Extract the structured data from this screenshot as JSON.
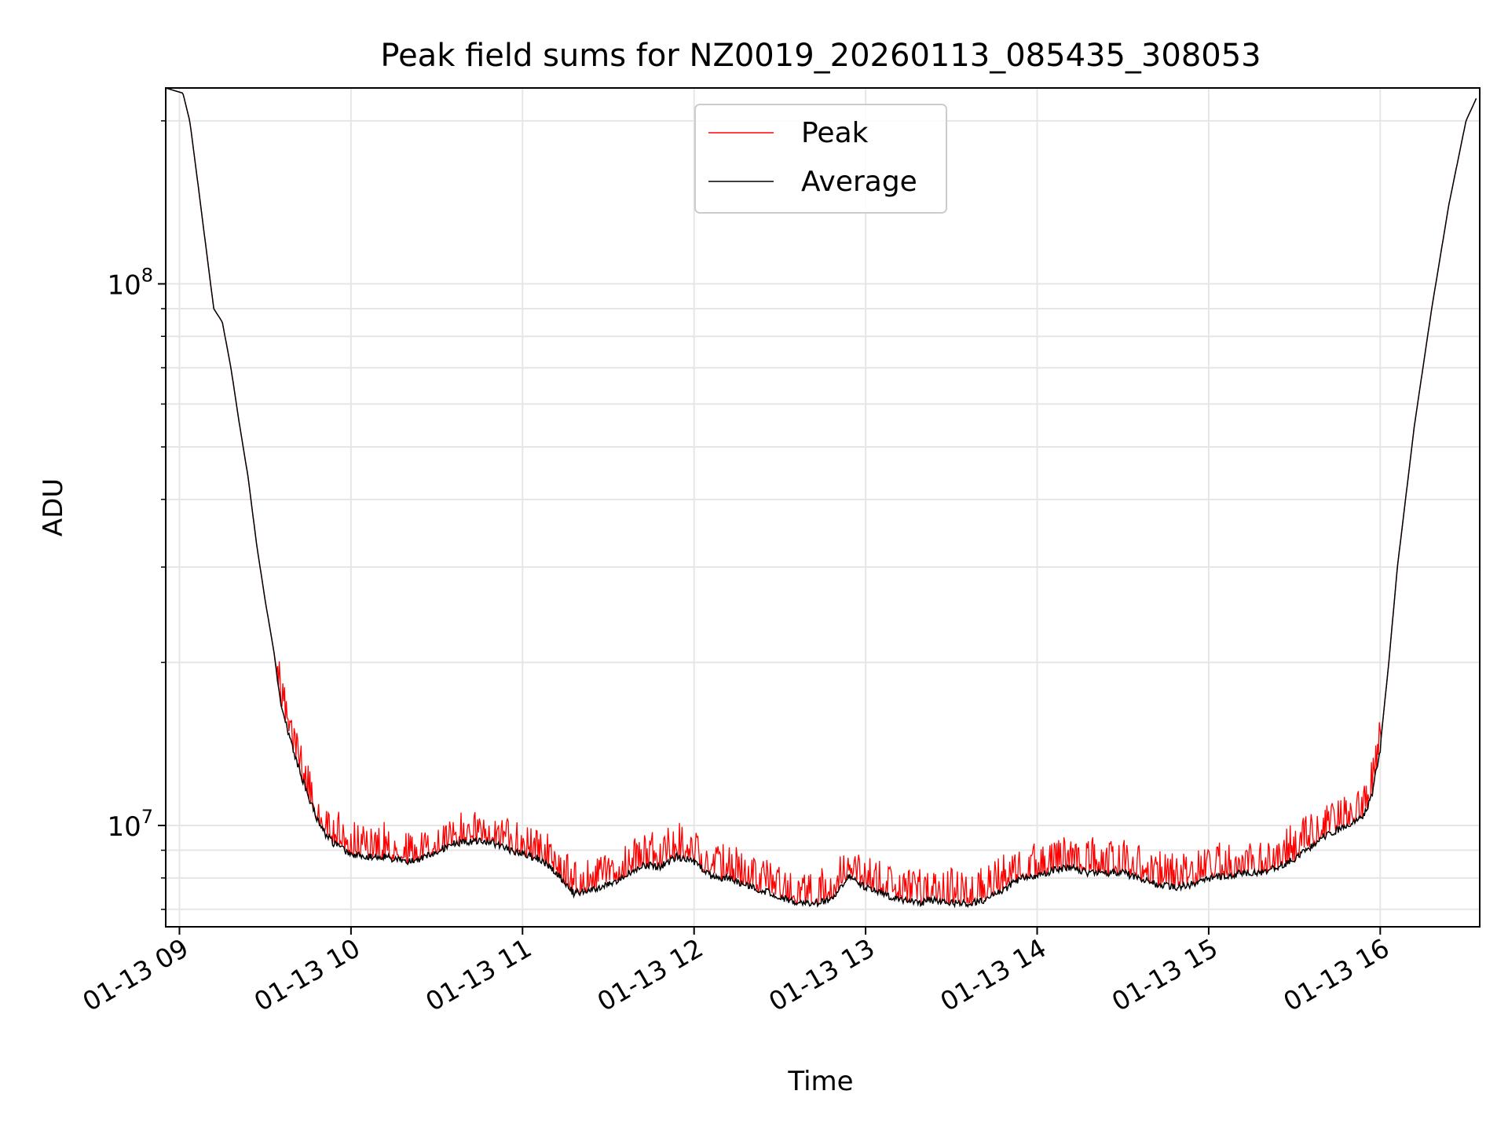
{
  "chart_data": {
    "type": "line",
    "title": "Peak field sums for NZ0019_20260113_085435_308053",
    "xlabel": "Time",
    "ylabel": "ADU",
    "yscale": "log",
    "ylim": [
      6500000,
      230000000
    ],
    "xlim_hours": [
      8.92,
      16.58
    ],
    "x_ticks": [
      {
        "hour": 9,
        "label": "01-13 09"
      },
      {
        "hour": 10,
        "label": "01-13 10"
      },
      {
        "hour": 11,
        "label": "01-13 11"
      },
      {
        "hour": 12,
        "label": "01-13 12"
      },
      {
        "hour": 13,
        "label": "01-13 13"
      },
      {
        "hour": 14,
        "label": "01-13 14"
      },
      {
        "hour": 15,
        "label": "01-13 15"
      },
      {
        "hour": 16,
        "label": "01-13 16"
      }
    ],
    "y_ticks": [
      {
        "value": 10000000,
        "base": "10",
        "exp": "7"
      },
      {
        "value": 100000000,
        "base": "10",
        "exp": "8"
      }
    ],
    "grid": true,
    "legend": {
      "position": "top-center",
      "entries": [
        {
          "name": "Peak",
          "color": "#ff0000"
        },
        {
          "name": "Average",
          "color": "#000000"
        }
      ]
    },
    "series": [
      {
        "name": "Peak",
        "color": "#ff0000",
        "noise_above_average": true
      },
      {
        "name": "Average",
        "color": "#000000",
        "hours": [
          8.92,
          9.02,
          9.06,
          9.1,
          9.15,
          9.2,
          9.25,
          9.3,
          9.35,
          9.4,
          9.45,
          9.5,
          9.55,
          9.6,
          9.65,
          9.7,
          9.75,
          9.8,
          9.85,
          9.9,
          9.95,
          10.0,
          10.1,
          10.2,
          10.3,
          10.4,
          10.5,
          10.6,
          10.7,
          10.8,
          10.9,
          11.0,
          11.1,
          11.2,
          11.3,
          11.4,
          11.5,
          11.6,
          11.7,
          11.8,
          11.9,
          12.0,
          12.1,
          12.2,
          12.3,
          12.4,
          12.5,
          12.6,
          12.7,
          12.8,
          12.9,
          13.0,
          13.1,
          13.2,
          13.3,
          13.4,
          13.5,
          13.6,
          13.7,
          13.8,
          13.9,
          14.0,
          14.1,
          14.2,
          14.3,
          14.4,
          14.5,
          14.6,
          14.7,
          14.8,
          14.9,
          15.0,
          15.1,
          15.2,
          15.3,
          15.4,
          15.5,
          15.6,
          15.7,
          15.8,
          15.9,
          15.95,
          16.0,
          16.05,
          16.1,
          16.2,
          16.3,
          16.4,
          16.5,
          16.56
        ],
        "values": [
          230000000,
          225000000,
          200000000,
          160000000,
          120000000,
          90000000,
          85000000,
          70000000,
          55000000,
          44000000,
          33000000,
          26000000,
          21000000,
          16500000,
          14500000,
          12800000,
          11500000,
          10500000,
          9800000,
          9400000,
          9200000,
          9000000,
          8900000,
          8900000,
          8700000,
          8800000,
          9100000,
          9400000,
          9500000,
          9500000,
          9200000,
          9000000,
          8800000,
          8300000,
          7600000,
          7700000,
          7900000,
          8200000,
          8600000,
          8500000,
          8900000,
          8700000,
          8200000,
          8100000,
          7900000,
          7700000,
          7500000,
          7300000,
          7300000,
          7400000,
          8200000,
          7800000,
          7600000,
          7400000,
          7300000,
          7400000,
          7300000,
          7300000,
          7400000,
          7700000,
          8100000,
          8200000,
          8400000,
          8500000,
          8300000,
          8300000,
          8300000,
          8100000,
          7900000,
          7800000,
          7900000,
          8100000,
          8200000,
          8300000,
          8300000,
          8500000,
          8800000,
          9300000,
          9800000,
          10100000,
          10500000,
          11500000,
          14000000,
          20000000,
          30000000,
          55000000,
          90000000,
          140000000,
          200000000,
          220000000
        ]
      }
    ]
  }
}
